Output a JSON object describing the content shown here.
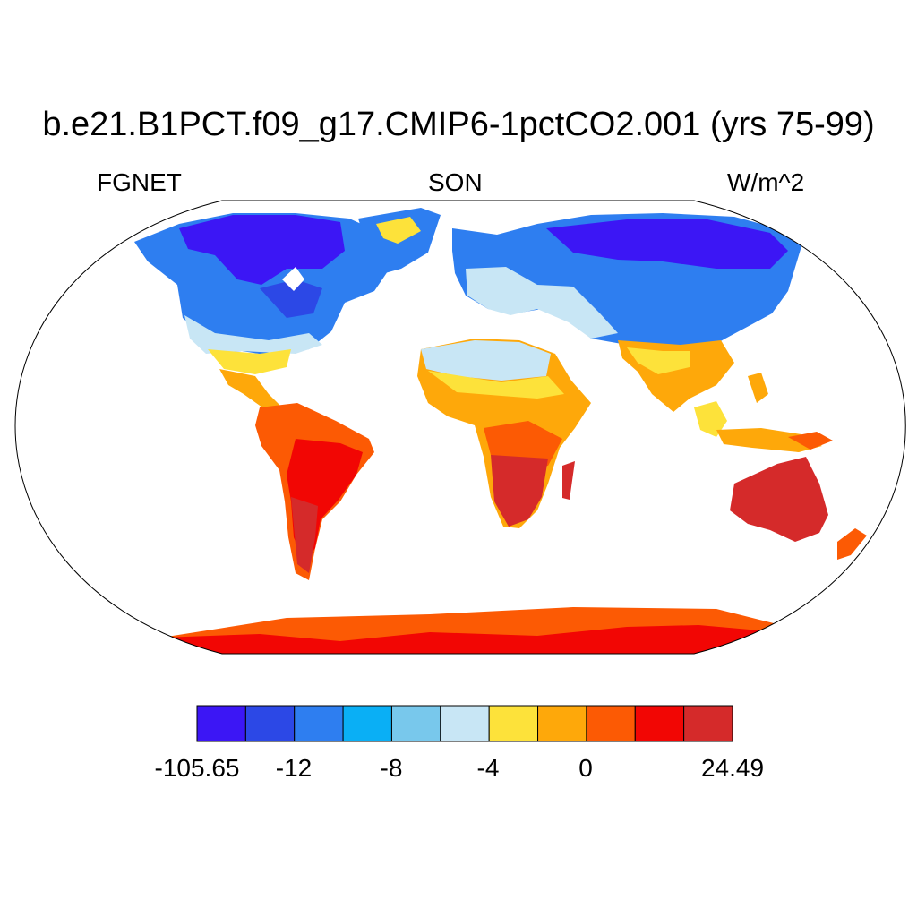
{
  "title": "b.e21.B1PCT.f09_g17.CMIP6-1pctCO2.001 (yrs 75-99)",
  "subtitle_left": "FGNET",
  "subtitle_center": "SON",
  "subtitle_right": "W/m^2",
  "colorbar": {
    "colors": [
      "#3c16f5",
      "#2c48e6",
      "#2e7ef0",
      "#0aaff5",
      "#78c8ec",
      "#c8e6f5",
      "#fde23a",
      "#fea80a",
      "#fc5a04",
      "#f20604",
      "#d52a2a"
    ],
    "labels": [
      "-105.65",
      "-12",
      "-8",
      "-4",
      "0",
      "24.49"
    ]
  }
}
